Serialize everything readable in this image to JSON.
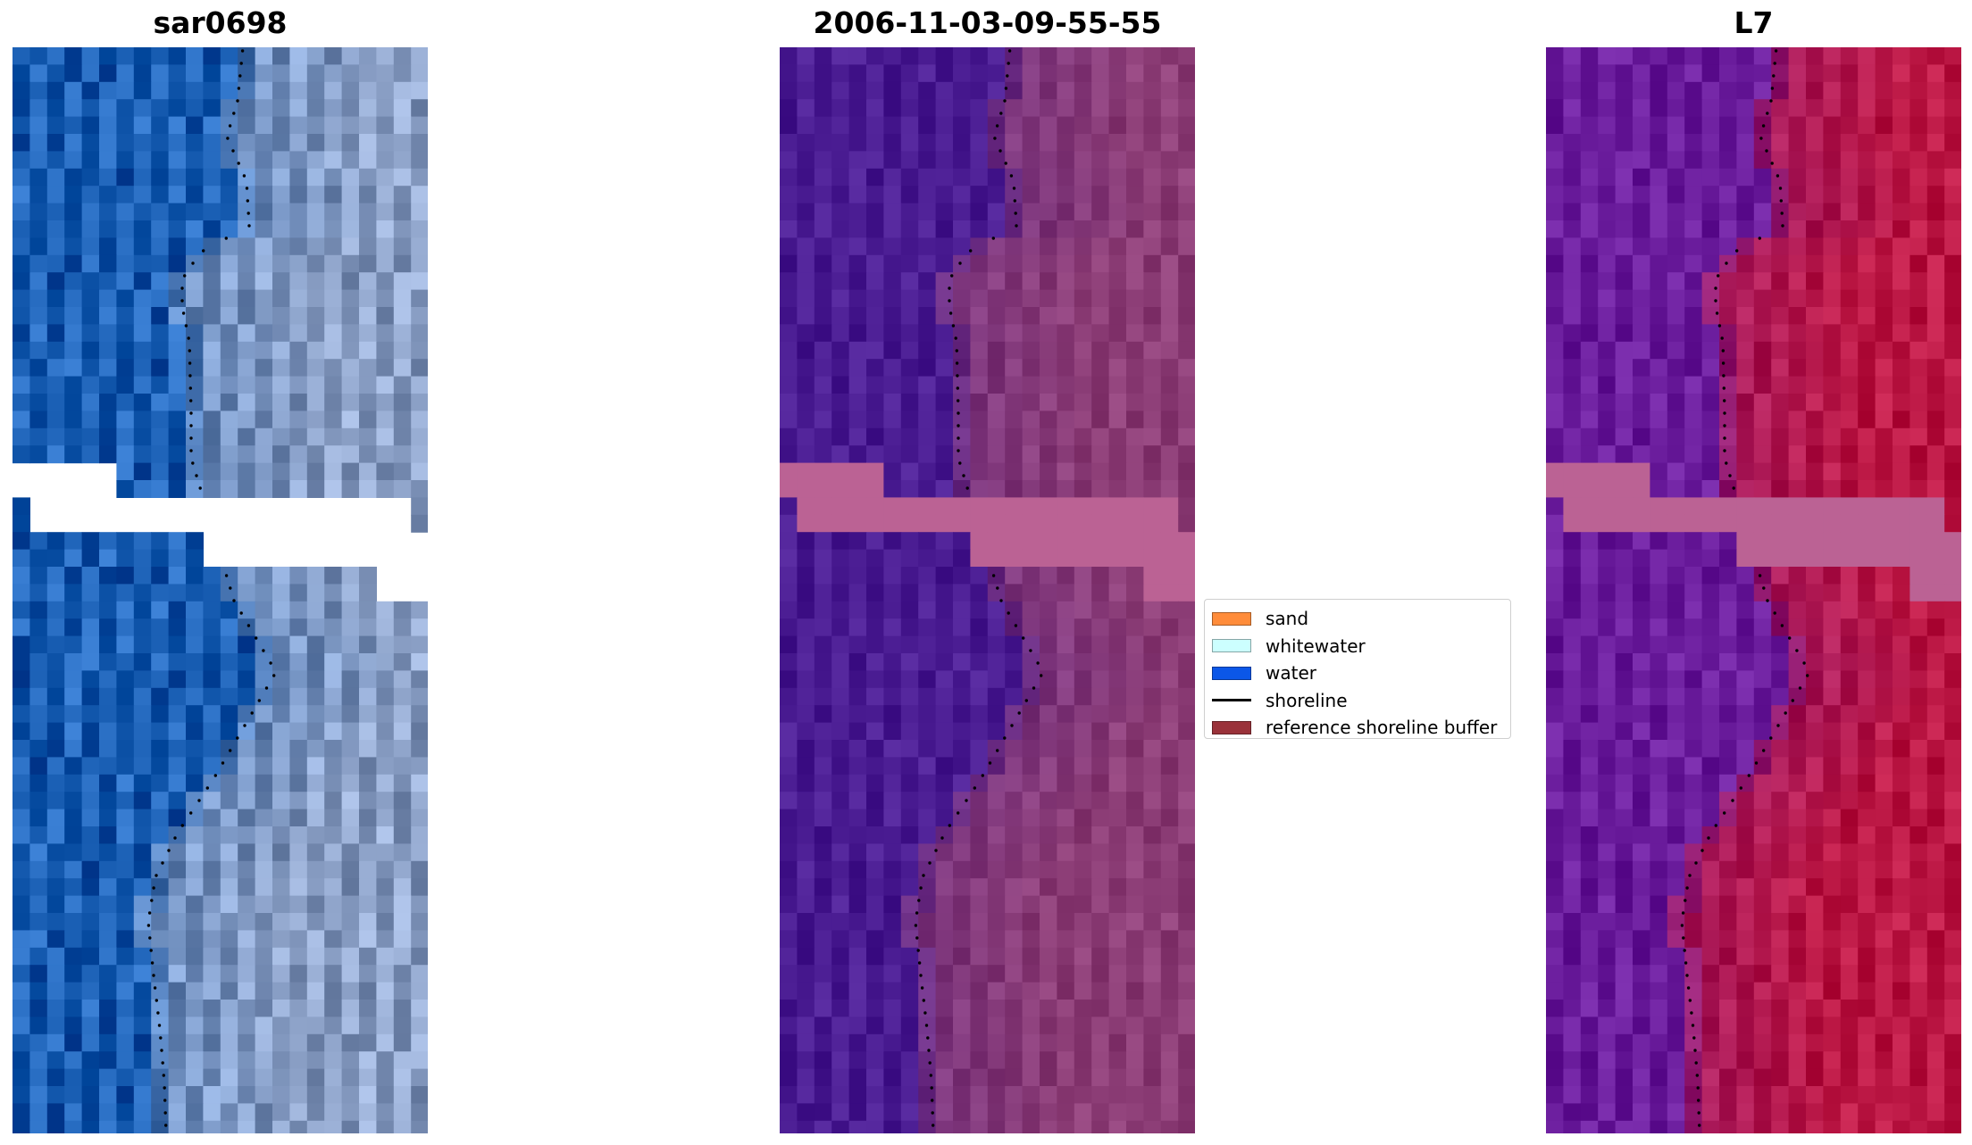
{
  "titles": {
    "left": "sar0698",
    "middle": "2006-11-03-09-55-55",
    "right": "L7"
  },
  "legend": {
    "items": [
      {
        "label": "sand",
        "color": "#ff8c3a",
        "kind": "patch"
      },
      {
        "label": "whitewater",
        "color": "#ccffff",
        "kind": "patch"
      },
      {
        "label": "water",
        "color": "#0b57e8",
        "kind": "patch"
      },
      {
        "label": "shoreline",
        "color": "#000000",
        "kind": "line"
      },
      {
        "label": "reference shoreline buffer",
        "color": "#9a323a",
        "kind": "patch"
      }
    ]
  },
  "colors": {
    "rgb_water": "#2a6fc4",
    "rgb_land": "#9db2d8",
    "class_water": "#52249a",
    "class_land": "#94457e",
    "buffer": "#bb6294",
    "mndwi_water": "#7426a6",
    "mndwi_land": "#c5214e"
  }
}
